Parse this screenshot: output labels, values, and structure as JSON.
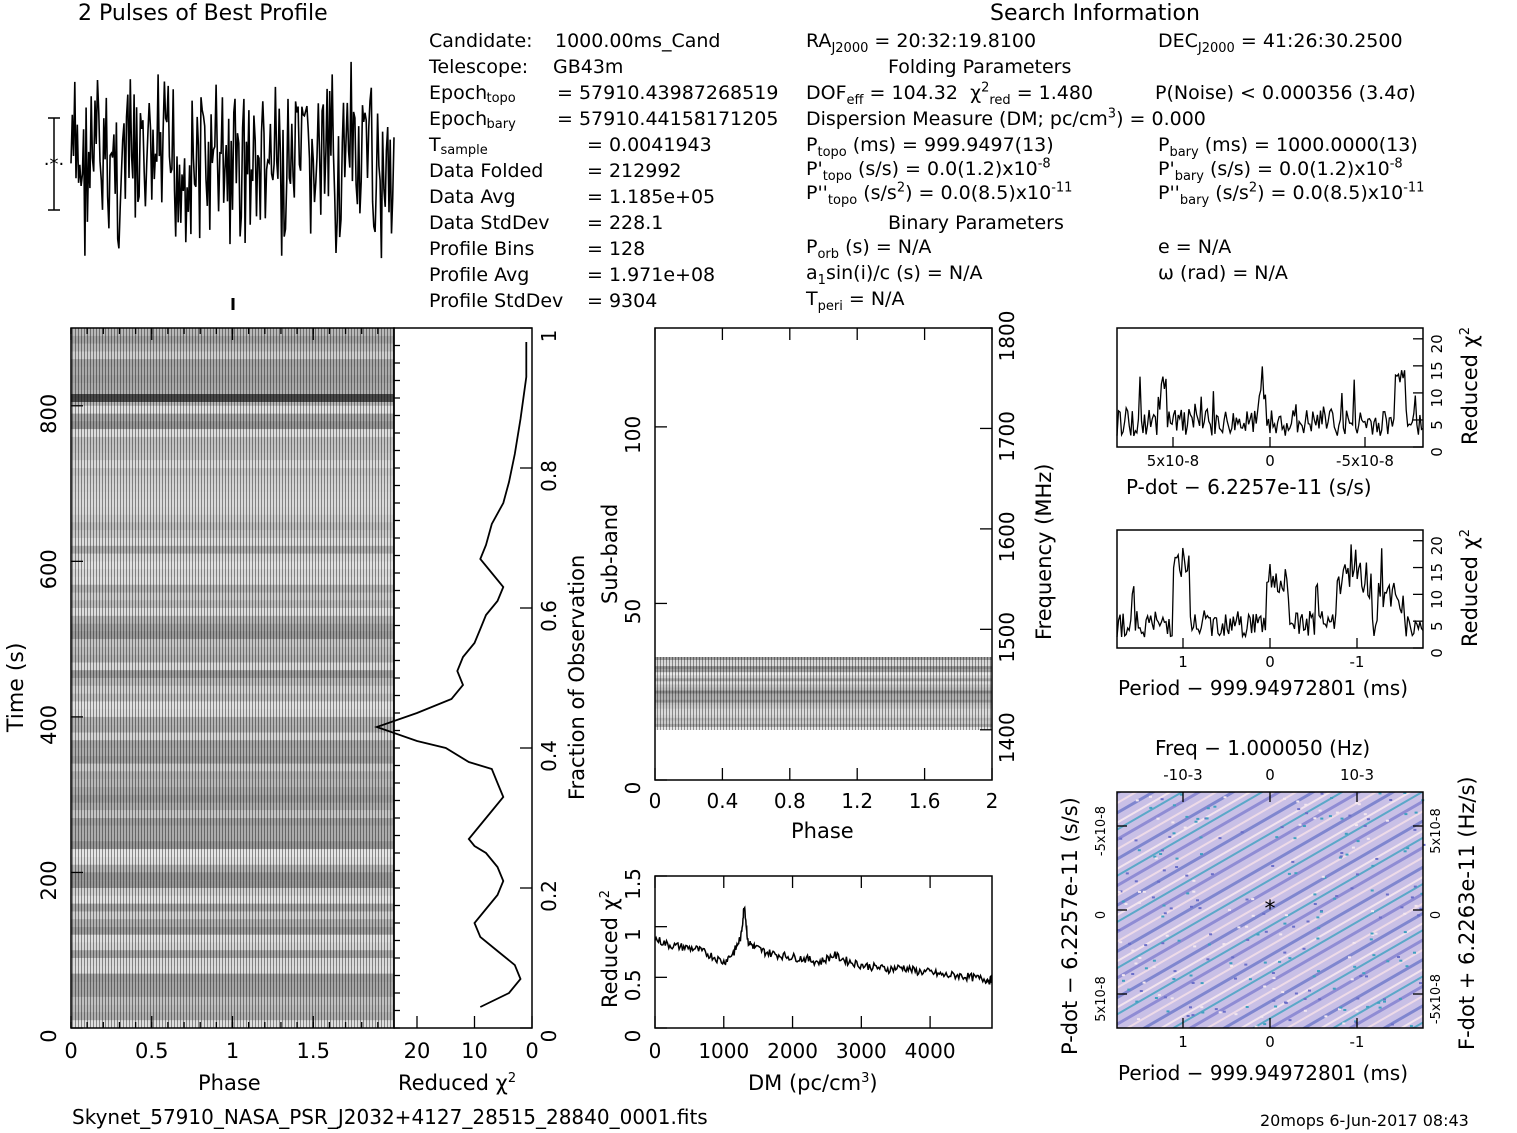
{
  "header": {
    "profile_title": "2 Pulses of Best Profile",
    "search_title": "Search Information",
    "folding_title": "Folding Parameters",
    "binary_title": "Binary Parameters",
    "filename": "Skynet_57910_NASA_PSR_J2032+4127_28515_28840_0001.fits",
    "footer": "20mops  6-Jun-2017 08:43"
  },
  "info_left": [
    {
      "label": "Candidate:",
      "sub": "",
      "value": "1000.00ms_Cand"
    },
    {
      "label": "Telescope:",
      "sub": "",
      "value": "GB43m"
    },
    {
      "label": "Epoch",
      "sub": "topo",
      "value": "= 57910.43987268519"
    },
    {
      "label": "Epoch",
      "sub": "bary",
      "value": "= 57910.44158171205"
    },
    {
      "label": "T",
      "sub": "sample",
      "value": "=   0.0041943"
    },
    {
      "label": "Data Folded",
      "sub": "",
      "value": "=   212992"
    },
    {
      "label": "Data Avg",
      "sub": "",
      "value": "=   1.185e+05"
    },
    {
      "label": "Data StdDev",
      "sub": "",
      "value": "=   228.1"
    },
    {
      "label": "Profile Bins",
      "sub": "",
      "value": "=   128"
    },
    {
      "label": "Profile Avg",
      "sub": "",
      "value": "=   1.971e+08"
    },
    {
      "label": "Profile StdDev",
      "sub": "",
      "value": "=   9304"
    }
  ],
  "info_search": {
    "ra": "RA",
    "ra_sub": "J2000",
    "ra_value": "= 20:32:19.8100",
    "dec": "DEC",
    "dec_sub": "J2000",
    "dec_value": "= 41:26:30.2500",
    "dof": "DOF",
    "dof_sub": "eff",
    "dof_value": "= 104.32",
    "chi": "χ",
    "chi_sup": "2",
    "chi_sub": "red",
    "chi_value": "= 1.480",
    "pnoise": "P(Noise) < 0.000356   (3.4σ)",
    "dm_pre": "Dispersion Measure (DM; pc/cm",
    "dm_sup": "3",
    "dm_post": ") = 0.000"
  },
  "info_periods": [
    {
      "pre": "P",
      "sup": "",
      "sub": "topo",
      "post": " (ms) =  999.9497(13)"
    },
    {
      "pre": "P'",
      "sup": "",
      "sub": "topo",
      "post": " (s/s) = 0.0(1.2)x10",
      "exp": "-8"
    },
    {
      "pre": "P''",
      "sup": "",
      "sub": "topo",
      "post": " (s/s",
      "sq": "2",
      "post2": ") = 0.0(8.5)x10",
      "exp": "-11"
    },
    {
      "pre": "P",
      "sup": "",
      "sub": "bary",
      "post": " (ms) =  1000.0000(13)"
    },
    {
      "pre": "P'",
      "sup": "",
      "sub": "bary",
      "post": " (s/s) = 0.0(1.2)x10",
      "exp": "-8"
    },
    {
      "pre": "P''",
      "sup": "",
      "sub": "bary",
      "post": " (s/s",
      "sq": "2",
      "post2": ") = 0.0(8.5)x10",
      "exp": "-11"
    }
  ],
  "info_binary": {
    "porb": "P",
    "porb_sub": "orb",
    "porb_value": " (s) = N/A",
    "a1": "a",
    "a1_sub": "1",
    "a1_value": "sin(i)/c (s) = N/A",
    "tperi": "T",
    "tperi_sub": "peri",
    "tperi_value": " = N/A",
    "e": "e = N/A",
    "omega": "ω (rad) = N/A"
  },
  "axis_labels": {
    "time": "Time (s)",
    "phase": "Phase",
    "reduced_chi": "Reduced χ",
    "reduced_chi_sup": "2",
    "fraction": "Fraction of Observation",
    "subband": "Sub-band",
    "frequency": "Frequency (MHz)",
    "dm": "DM (pc/cm",
    "dm_sup": "3",
    "dm_close": ")",
    "pdot_x": "P-dot − 6.2257e-11 (s/s)",
    "period_x": "Period − 999.94972801 (ms)",
    "freq_top": "Freq − 1.000050 (Hz)",
    "pdot_y": "P-dot − 6.2257e-11 (s/s)",
    "fdot_y": "F-dot + 6.2263e-11 (Hz/s)"
  },
  "chart_data": [
    {
      "type": "line",
      "panel": "profile",
      "title": "2 Pulses of Best Profile",
      "xlim": [
        0,
        2
      ],
      "note": "128-bin profile repeated twice, noise-dominated"
    },
    {
      "type": "heatmap",
      "panel": "time-vs-phase",
      "xlabel": "Phase",
      "ylabel": "Time (s)",
      "xlim": [
        0,
        2
      ],
      "ylim": [
        0,
        900
      ],
      "x_ticks": [
        "0",
        "0.5",
        "1",
        "1.5"
      ],
      "y_ticks": [
        "0",
        "200",
        "400",
        "600",
        "800"
      ]
    },
    {
      "type": "line",
      "panel": "reduced-chi2-vs-time",
      "xlabel": "Reduced χ2",
      "ylabel": "Fraction of Observation",
      "xlim": [
        24,
        0
      ],
      "ylim": [
        0,
        1
      ],
      "x_ticks": [
        "20",
        "10",
        "0"
      ],
      "y_ticks": [
        "0",
        "0.2",
        "0.4",
        "0.6",
        "0.8",
        "1"
      ],
      "x": [
        9,
        4,
        2,
        3,
        6,
        9,
        10,
        8,
        6,
        5,
        6,
        8,
        10,
        11,
        9,
        7,
        5,
        6,
        7,
        11,
        15,
        20,
        27,
        20,
        14,
        12,
        13,
        12,
        10,
        9,
        8,
        6,
        5,
        7,
        9,
        8,
        7,
        5,
        4,
        3,
        2,
        1,
        1
      ],
      "y": [
        0.03,
        0.05,
        0.07,
        0.09,
        0.11,
        0.13,
        0.15,
        0.17,
        0.19,
        0.21,
        0.23,
        0.25,
        0.26,
        0.27,
        0.29,
        0.31,
        0.33,
        0.35,
        0.37,
        0.38,
        0.4,
        0.41,
        0.43,
        0.45,
        0.47,
        0.49,
        0.51,
        0.53,
        0.55,
        0.57,
        0.59,
        0.61,
        0.63,
        0.65,
        0.67,
        0.69,
        0.72,
        0.75,
        0.78,
        0.82,
        0.87,
        0.93,
        0.98
      ]
    },
    {
      "type": "heatmap",
      "panel": "subband-vs-phase",
      "xlabel": "Phase",
      "ylabel": "Sub-band",
      "y2label": "Frequency (MHz)",
      "xlim": [
        0,
        2
      ],
      "ylim": [
        0,
        128
      ],
      "y2lim": [
        1350,
        1800
      ],
      "x_ticks": [
        "0",
        "0.4",
        "0.8",
        "1.2",
        "1.6",
        "2"
      ],
      "y_ticks": [
        "0",
        "50",
        "100"
      ],
      "y2_ticks": [
        "1400",
        "1500",
        "1600",
        "1700",
        "1800"
      ],
      "active_subbands": [
        14,
        35
      ]
    },
    {
      "type": "line",
      "panel": "chi2-vs-dm",
      "xlabel": "DM (pc/cm3)",
      "ylabel": "Reduced χ2",
      "xlim": [
        0,
        4900
      ],
      "ylim": [
        0,
        1.5
      ],
      "x_ticks": [
        "0",
        "1000",
        "2000",
        "3000",
        "4000"
      ],
      "y_ticks": [
        "0",
        "0.5",
        "1",
        "1.5"
      ],
      "x": [
        0,
        200,
        400,
        600,
        800,
        1000,
        1150,
        1250,
        1300,
        1350,
        1450,
        1600,
        1800,
        2000,
        2200,
        2400,
        2600,
        2800,
        3000,
        3200,
        3400,
        3600,
        3800,
        4000,
        4200,
        4400,
        4600,
        4800,
        4900
      ],
      "y": [
        0.88,
        0.82,
        0.8,
        0.78,
        0.72,
        0.65,
        0.75,
        0.9,
        1.22,
        0.85,
        0.8,
        0.75,
        0.72,
        0.7,
        0.68,
        0.65,
        0.72,
        0.66,
        0.62,
        0.6,
        0.58,
        0.6,
        0.56,
        0.55,
        0.52,
        0.52,
        0.5,
        0.48,
        0.47
      ]
    },
    {
      "type": "line",
      "panel": "chi2-vs-pdot",
      "xlabel": "P-dot − 6.2257e-11 (s/s)",
      "ylabel": "Reduced χ2",
      "ylim": [
        0,
        22
      ],
      "x_ticks": [
        "5x10-8",
        "0",
        "-5x10-8"
      ],
      "y_ticks": [
        "0",
        "5",
        "10",
        "15",
        "20"
      ]
    },
    {
      "type": "line",
      "panel": "chi2-vs-period",
      "xlabel": "Period − 999.94972801 (ms)",
      "ylabel": "Reduced χ2",
      "ylim": [
        0,
        22
      ],
      "x_ticks": [
        "1",
        "0",
        "-1"
      ],
      "y_ticks": [
        "0",
        "5",
        "10",
        "15",
        "20"
      ]
    },
    {
      "type": "heatmap",
      "panel": "pdot-vs-period",
      "xlabel": "Period − 999.94972801 (ms)",
      "ylabel": "P-dot − 6.2257e-11 (s/s)",
      "x2label": "Freq − 1.000050 (Hz)",
      "y2label": "F-dot + 6.2263e-11 (Hz/s)",
      "x_ticks": [
        "1",
        "0",
        "-1"
      ],
      "x2_ticks": [
        "-10-3",
        "0",
        "10-3"
      ],
      "y_ticks": [
        "-5x10-8",
        "0",
        "5x10-8"
      ],
      "y2_ticks": [
        "5x10-8",
        "0",
        "-5x10-8"
      ]
    }
  ]
}
